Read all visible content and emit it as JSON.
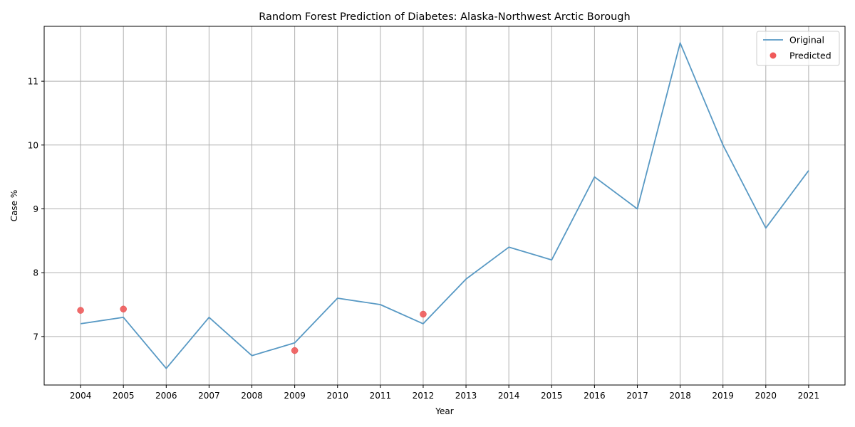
{
  "chart_data": {
    "type": "line",
    "title": "Random Forest Prediction of Diabetes: Alaska-Northwest Arctic Borough",
    "xlabel": "Year",
    "ylabel": "Case %",
    "x": [
      2004,
      2005,
      2006,
      2007,
      2008,
      2009,
      2010,
      2011,
      2012,
      2013,
      2014,
      2015,
      2016,
      2017,
      2018,
      2019,
      2020,
      2021
    ],
    "x_tick_labels": [
      "2004",
      "2005",
      "2006",
      "2007",
      "2008",
      "2009",
      "2010",
      "2011",
      "2012",
      "2013",
      "2014",
      "2015",
      "2016",
      "2017",
      "2018",
      "2019",
      "2020",
      "2021"
    ],
    "y_ticks": [
      7,
      8,
      9,
      10,
      11
    ],
    "y_tick_labels": [
      "7",
      "8",
      "9",
      "10",
      "11"
    ],
    "xlim": [
      2003.15,
      2021.85
    ],
    "ylim": [
      6.24,
      11.86
    ],
    "grid": true,
    "legend_position": "upper right",
    "series": [
      {
        "name": "Original",
        "kind": "line",
        "color": "#5899c4",
        "x": [
          2004,
          2005,
          2006,
          2007,
          2008,
          2009,
          2010,
          2011,
          2012,
          2013,
          2014,
          2015,
          2016,
          2017,
          2018,
          2019,
          2020,
          2021
        ],
        "values": [
          7.2,
          7.3,
          6.5,
          7.3,
          6.7,
          6.9,
          7.6,
          7.5,
          7.2,
          7.9,
          8.4,
          8.2,
          9.5,
          9.0,
          11.6,
          10.0,
          8.7,
          9.6
        ]
      },
      {
        "name": "Predicted",
        "kind": "scatter",
        "color": "#f05a5a",
        "x": [
          2004,
          2005,
          2009,
          2012
        ],
        "values": [
          7.41,
          7.43,
          6.78,
          7.35
        ]
      }
    ]
  }
}
